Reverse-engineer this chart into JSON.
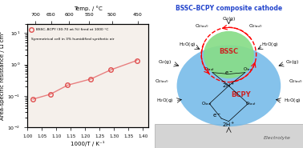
{
  "x_data": [
    1.02,
    1.08,
    1.14,
    1.22,
    1.29,
    1.38
  ],
  "y_data": [
    0.079,
    0.113,
    0.22,
    0.345,
    0.68,
    1.35
  ],
  "x_label": "1000/T / K⁻¹",
  "y_label": "Area-specific resistance / Ω cm²",
  "top_label": "Temp. / °C",
  "top_ticks": [
    700,
    650,
    600,
    550,
    500,
    450
  ],
  "top_tick_pos": [
    1.0277,
    1.0824,
    1.145,
    1.2151,
    1.2937,
    1.3834
  ],
  "legend_line1": "BSSC–BCPY (30:70 wt.%) fired at 1000 °C",
  "legend_line2": "Symmetrical cell in 3% humidified synthetic air",
  "marker_color": "#e05050",
  "line_color": "#e88080",
  "bg_color": "#f5f0eb",
  "xlim": [
    1.0,
    1.42
  ],
  "right_title": "BSSC–BCPY composite cathode",
  "right_title_color": "#2244cc"
}
